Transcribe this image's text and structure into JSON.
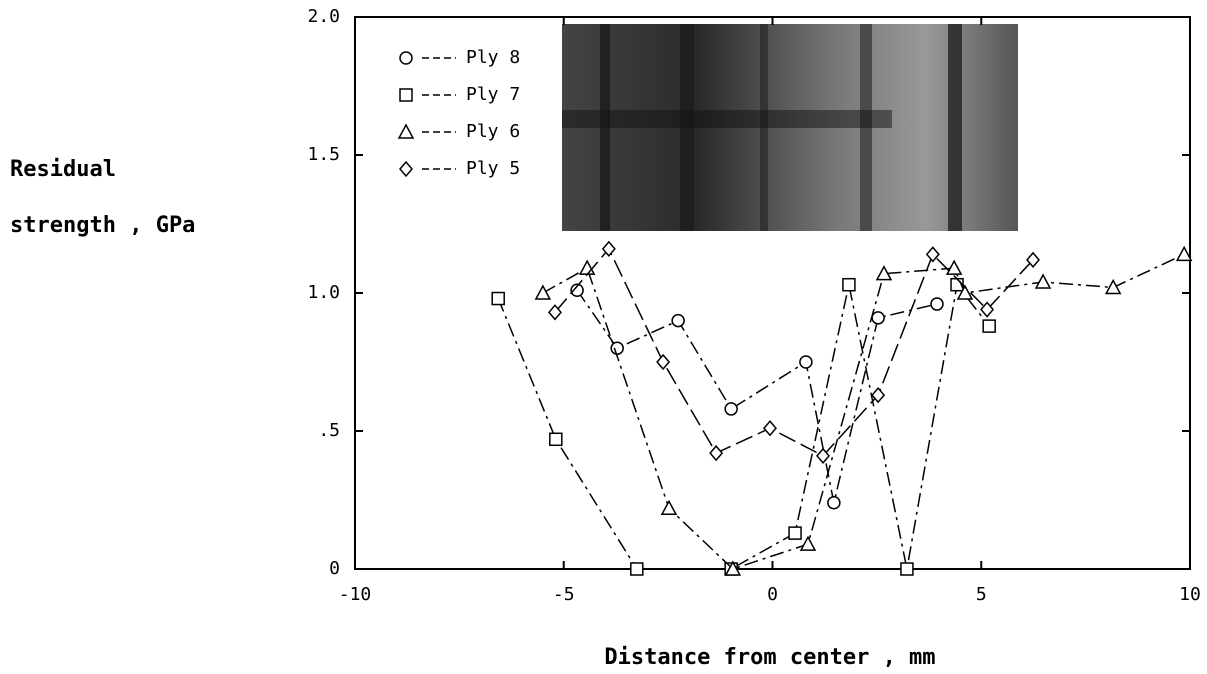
{
  "chart_data": {
    "type": "line",
    "ylabel": [
      "Residual",
      "strength , GPa"
    ],
    "xlabel": "Distance from center , mm",
    "xlim": [
      -10,
      10
    ],
    "xticks": [
      -10,
      -5,
      0,
      5,
      10
    ],
    "ylim": [
      0,
      2
    ],
    "yticks": [
      0,
      {
        "value": 0.5,
        "label": ".5"
      },
      {
        "value": 1,
        "label": "1.0"
      },
      1.5,
      {
        "value": 2,
        "label": "2.0"
      }
    ],
    "legend": "upper left",
    "series": [
      {
        "name": "Ply 8",
        "color": "#000000",
        "marker": "circle",
        "linestyle": "dashdot",
        "x": [
          -4.68,
          -3.72,
          -2.26,
          -0.99,
          0.8,
          1.47,
          2.53,
          3.94
        ],
        "values": [
          1.01,
          0.8,
          0.9,
          0.58,
          0.75,
          0.24,
          0.91,
          0.96
        ]
      },
      {
        "name": "Ply 7",
        "color": "#000000",
        "marker": "square",
        "linestyle": "dashdot",
        "x": [
          -6.57,
          -5.19,
          -3.25,
          -0.99,
          0.54,
          1.83,
          3.22,
          4.42,
          5.19
        ],
        "values": [
          0.98,
          0.47,
          0,
          0,
          0.13,
          1.03,
          0,
          1.03,
          0.88
        ]
      },
      {
        "name": "Ply 6",
        "color": "#000000",
        "marker": "triangle",
        "linestyle": "dashdot",
        "x": [
          -5.5,
          -4.44,
          -2.48,
          -0.95,
          0.85,
          2.67,
          4.35,
          4.61,
          6.48,
          8.16,
          9.86
        ],
        "values": [
          1.0,
          1.09,
          0.22,
          0,
          0.09,
          1.07,
          1.09,
          1.0,
          1.04,
          1.02,
          1.14
        ]
      },
      {
        "name": "Ply 5",
        "color": "#000000",
        "marker": "diamond",
        "linestyle": "longdash",
        "x": [
          -5.21,
          -3.92,
          -2.62,
          -1.35,
          -0.06,
          1.21,
          2.53,
          3.84,
          5.14,
          6.24
        ],
        "values": [
          0.93,
          1.16,
          0.75,
          0.42,
          0.51,
          0.41,
          0.63,
          1.14,
          0.94,
          1.12
        ]
      }
    ]
  }
}
